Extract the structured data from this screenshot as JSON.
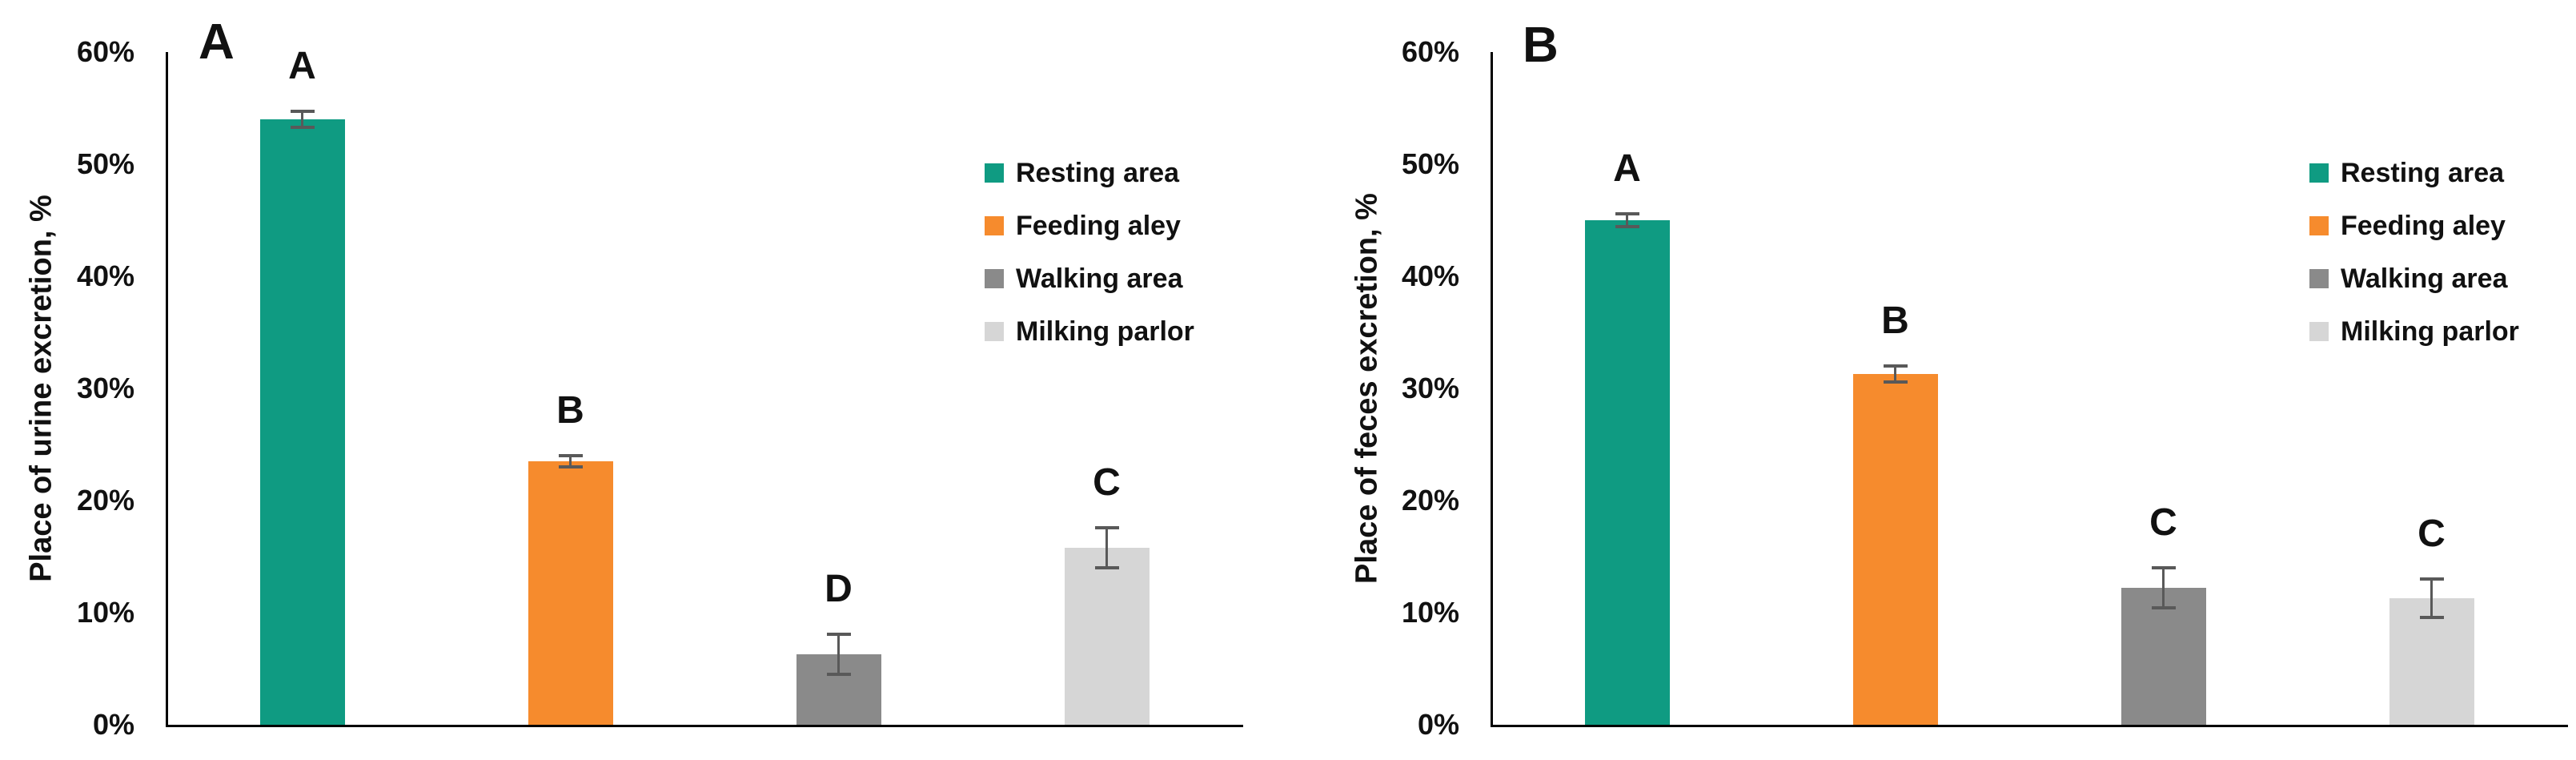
{
  "figure_title": "",
  "legend": {
    "entries": [
      {
        "label": "Resting area",
        "color": "#0f9b82"
      },
      {
        "label": "Feeding aley",
        "color": "#f68b2d"
      },
      {
        "label": "Walking area",
        "color": "#8a8a8a"
      },
      {
        "label": "Milking parlor",
        "color": "#d6d6d6"
      }
    ],
    "position": "inside-right"
  },
  "colors": {
    "resting_area": "#0f9b82",
    "feeding_aley": "#f68b2d",
    "walking_area": "#8a8a8a",
    "milking_parlor": "#d6d6d6",
    "error_bar": "#595959",
    "axis": "#000000",
    "text": "#111111",
    "background": "#ffffff"
  },
  "chart_data": [
    {
      "type": "bar",
      "panel_label": "A",
      "title": "",
      "xlabel": "",
      "ylabel": "Place of urine excretion, %",
      "categories": [
        "Resting area",
        "Feeding aley",
        "Walking area",
        "Milking parlor"
      ],
      "values": [
        54.0,
        23.5,
        6.3,
        15.8
      ],
      "errors": [
        0.7,
        0.5,
        1.8,
        1.8
      ],
      "significance_letters": [
        "A",
        "B",
        "D",
        "C"
      ],
      "bar_colors": [
        "#0f9b82",
        "#f68b2d",
        "#8a8a8a",
        "#d6d6d6"
      ],
      "ylim": [
        0,
        60
      ],
      "ytick_step": 10,
      "ytick_labels": [
        "0%",
        "10%",
        "20%",
        "30%",
        "40%",
        "50%",
        "60%"
      ],
      "grid": false,
      "legend_visible": true
    },
    {
      "type": "bar",
      "panel_label": "B",
      "title": "",
      "xlabel": "",
      "ylabel": "Place of feces excretion, %",
      "categories": [
        "Resting area",
        "Feeding aley",
        "Walking area",
        "Milking parlor"
      ],
      "values": [
        45.0,
        31.3,
        12.2,
        11.3
      ],
      "errors": [
        0.6,
        0.7,
        1.8,
        1.7
      ],
      "significance_letters": [
        "A",
        "B",
        "C",
        "C"
      ],
      "bar_colors": [
        "#0f9b82",
        "#f68b2d",
        "#8a8a8a",
        "#d6d6d6"
      ],
      "ylim": [
        0,
        60
      ],
      "ytick_step": 10,
      "ytick_labels": [
        "0%",
        "10%",
        "20%",
        "30%",
        "40%",
        "50%",
        "60%"
      ],
      "grid": false,
      "legend_visible": true
    }
  ]
}
